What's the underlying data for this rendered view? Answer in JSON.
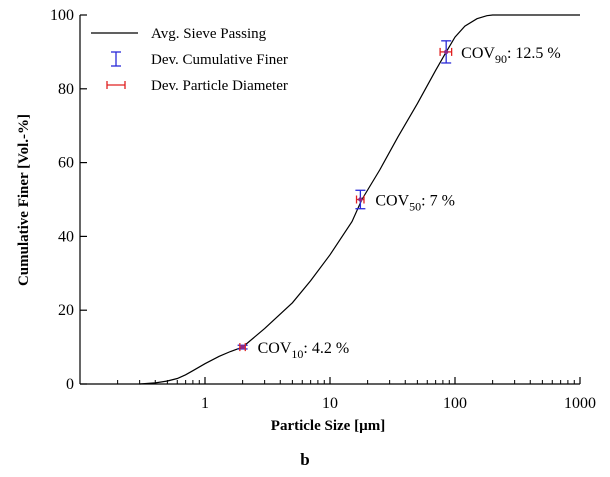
{
  "caption": "b",
  "colors": {
    "curve": "#000000",
    "cumulative_finer_dev": "#2a2ad8",
    "particle_diameter_dev": "#e02020",
    "point": "#8a2a8a"
  },
  "chart_data": {
    "type": "line",
    "x_scale": "log",
    "xlim": [
      0.1,
      1000
    ],
    "ylim": [
      0,
      100
    ],
    "xlabel": "Particle Size [",
    "xlabel_unit": "µm",
    "xlabel_end": "]",
    "ylabel": "Cumulative Finer [Vol.-%]",
    "x_ticks": [
      1,
      10,
      100,
      1000
    ],
    "x_tick_labels": [
      "1",
      "10",
      "100",
      "1000"
    ],
    "y_ticks": [
      0,
      20,
      40,
      60,
      80,
      100
    ],
    "y_tick_labels": [
      "0",
      "20",
      "40",
      "60",
      "80",
      "100"
    ],
    "grid": false,
    "legend_placement": "top-left",
    "legend": [
      {
        "label": "Avg. Sieve Passing",
        "symbol": "line"
      },
      {
        "label": "Dev. Cumulative Finer",
        "symbol": "vertical-errorbar"
      },
      {
        "label": "Dev. Particle Diameter",
        "symbol": "horizontal-errorbar"
      }
    ],
    "series": [
      {
        "name": "Avg. Sieve Passing",
        "x": [
          0.3,
          0.4,
          0.5,
          0.6,
          0.7,
          0.8,
          1.0,
          1.3,
          1.6,
          2.0,
          3.0,
          5.0,
          7.0,
          10,
          15,
          18,
          25,
          35,
          50,
          70,
          85,
          100,
          120,
          150,
          180,
          200,
          300,
          500,
          1000
        ],
        "y": [
          0,
          0.3,
          0.8,
          1.5,
          2.5,
          3.6,
          5.5,
          7.5,
          8.8,
          10,
          15,
          22,
          28,
          35,
          44,
          50,
          58,
          67,
          76,
          85,
          90,
          94,
          97,
          99,
          99.8,
          100,
          100,
          100,
          100
        ]
      }
    ],
    "markers": [
      {
        "x": 2.0,
        "y": 10,
        "y_err": 0.5,
        "x_err": 0.1
      },
      {
        "x": 17.5,
        "y": 50,
        "y_err": 2.5,
        "x_err": 1.2
      },
      {
        "x": 85,
        "y": 90,
        "y_err": 3.0,
        "x_err": 9
      }
    ],
    "annotations": [
      {
        "x": 2.0,
        "y": 10,
        "base": "COV",
        "sub": "10",
        "rest": ": 4.2 %"
      },
      {
        "x": 17.5,
        "y": 50,
        "base": "COV",
        "sub": "50",
        "rest": ": 7 %"
      },
      {
        "x": 85,
        "y": 90,
        "base": "COV",
        "sub": "90",
        "rest": ": 12.5 %"
      }
    ]
  }
}
